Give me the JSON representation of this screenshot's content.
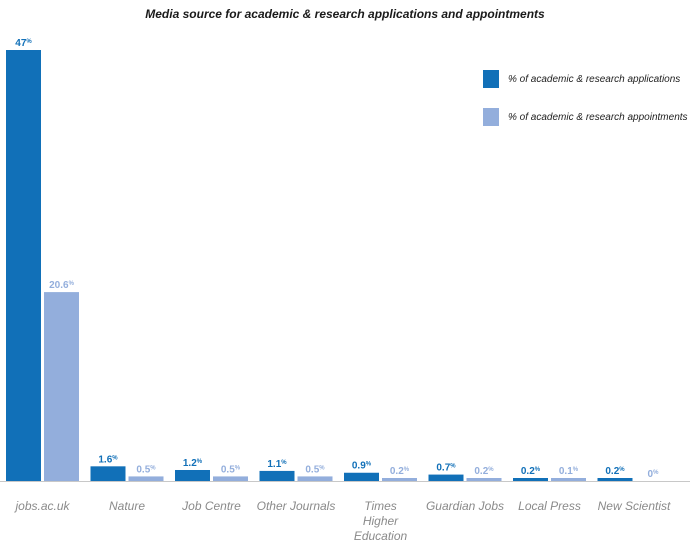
{
  "chart_data": {
    "type": "bar",
    "title": "Media source for academic & research applications and appointments",
    "xlabel": "",
    "ylabel": "",
    "ylim": [
      0,
      47
    ],
    "grid": false,
    "legend_placement": "top-right",
    "categories": [
      "jobs.ac.uk",
      "Nature",
      "Job Centre",
      "Other Journals",
      "Times Higher Education",
      "Guardian Jobs",
      "Local Press",
      "New Scientist"
    ],
    "category_lines": [
      [
        "jobs.ac.uk"
      ],
      [
        "Nature"
      ],
      [
        "Job Centre"
      ],
      [
        "Other Journals"
      ],
      [
        "Times",
        "Higher",
        "Education"
      ],
      [
        "Guardian Jobs"
      ],
      [
        "Local Press"
      ],
      [
        "New Scientist"
      ]
    ],
    "series": [
      {
        "name": "% of academic & research applications",
        "color": "#1170b8",
        "values": [
          47,
          1.6,
          1.2,
          1.1,
          0.9,
          0.7,
          0.2,
          0.2
        ],
        "labels": [
          "47",
          "1.6",
          "1.2",
          "1.1",
          "0.9",
          "0.7",
          "0.2",
          "0.2"
        ]
      },
      {
        "name": "% of academic & research appointments",
        "color": "#93aedc",
        "values": [
          20.6,
          0.5,
          0.5,
          0.5,
          0.2,
          0.2,
          0.1,
          0
        ],
        "labels": [
          "20.6",
          "0.5",
          "0.5",
          "0.5",
          "0.2",
          "0.2",
          "0.1",
          "0"
        ]
      }
    ],
    "value_suffix": "%"
  }
}
